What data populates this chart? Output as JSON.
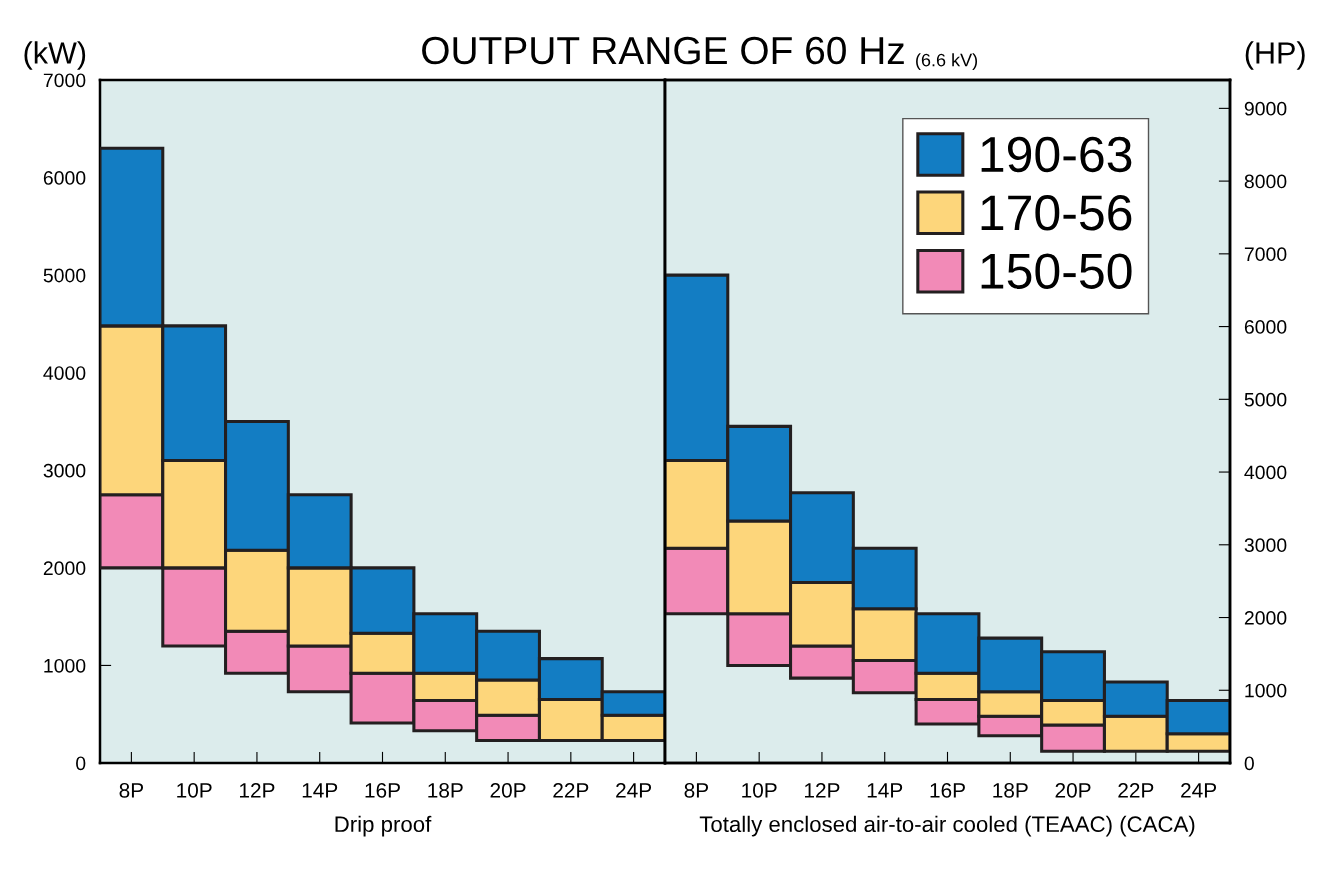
{
  "chart_data": [
    {
      "type": "bar",
      "title": "OUTPUT RANGE OF 60 Hz",
      "ylabel": "(kW)",
      "xlabel": "Drip proof",
      "categories": [
        "8P",
        "10P",
        "12P",
        "14P",
        "16P",
        "18P",
        "20P",
        "22P",
        "24P"
      ],
      "series": [
        {
          "color": "#f28ab7",
          "base": [
            2000,
            1200,
            920,
            730,
            410,
            330,
            230,
            null,
            null
          ],
          "values": [
            750,
            800,
            430,
            470,
            510,
            310,
            260,
            null,
            null
          ]
        },
        {
          "color": "#fdd67b",
          "base": [
            2750,
            2000,
            1350,
            1200,
            920,
            640,
            490,
            230,
            230
          ],
          "values": [
            1730,
            1100,
            830,
            800,
            410,
            280,
            360,
            420,
            260
          ]
        },
        {
          "color": "#137dc3",
          "base": [
            4480,
            3100,
            2180,
            2000,
            1330,
            920,
            850,
            650,
            490
          ],
          "values": [
            1820,
            1380,
            1320,
            750,
            670,
            610,
            500,
            420,
            240
          ]
        }
      ],
      "ylim": [
        0,
        7000
      ],
      "yticks": [
        0,
        1000,
        2000,
        3000,
        4000,
        5000,
        6000,
        7000
      ],
      "legend": false
    },
    {
      "type": "bar",
      "subtitle": "(6.6 kV)",
      "xlabel": "Totally enclosed air-to-air cooled (TEAAC) (CACA)",
      "y2label": "(HP)",
      "categories": [
        "8P",
        "10P",
        "12P",
        "14P",
        "16P",
        "18P",
        "20P",
        "22P",
        "24P"
      ],
      "series": [
        {
          "name": "150-50",
          "color": "#f28ab7",
          "base": [
            1530,
            1000,
            870,
            720,
            400,
            280,
            120,
            null,
            null
          ],
          "values": [
            670,
            530,
            330,
            330,
            250,
            200,
            270,
            null,
            null
          ]
        },
        {
          "name": "170-56",
          "color": "#fdd67b",
          "base": [
            2200,
            1530,
            1200,
            1050,
            650,
            480,
            390,
            120,
            120
          ],
          "values": [
            900,
            950,
            650,
            530,
            270,
            250,
            250,
            360,
            180
          ]
        },
        {
          "name": "190-63",
          "color": "#137dc3",
          "base": [
            3100,
            2480,
            1850,
            1580,
            920,
            730,
            640,
            480,
            300
          ],
          "values": [
            1900,
            970,
            920,
            620,
            610,
            550,
            500,
            350,
            340
          ]
        }
      ],
      "ylim": [
        0,
        7000
      ],
      "y2lim": [
        0,
        9390
      ],
      "y2ticks": [
        0,
        1000,
        2000,
        3000,
        4000,
        5000,
        6000,
        7000,
        8000,
        9000
      ],
      "legend": "top right"
    }
  ]
}
